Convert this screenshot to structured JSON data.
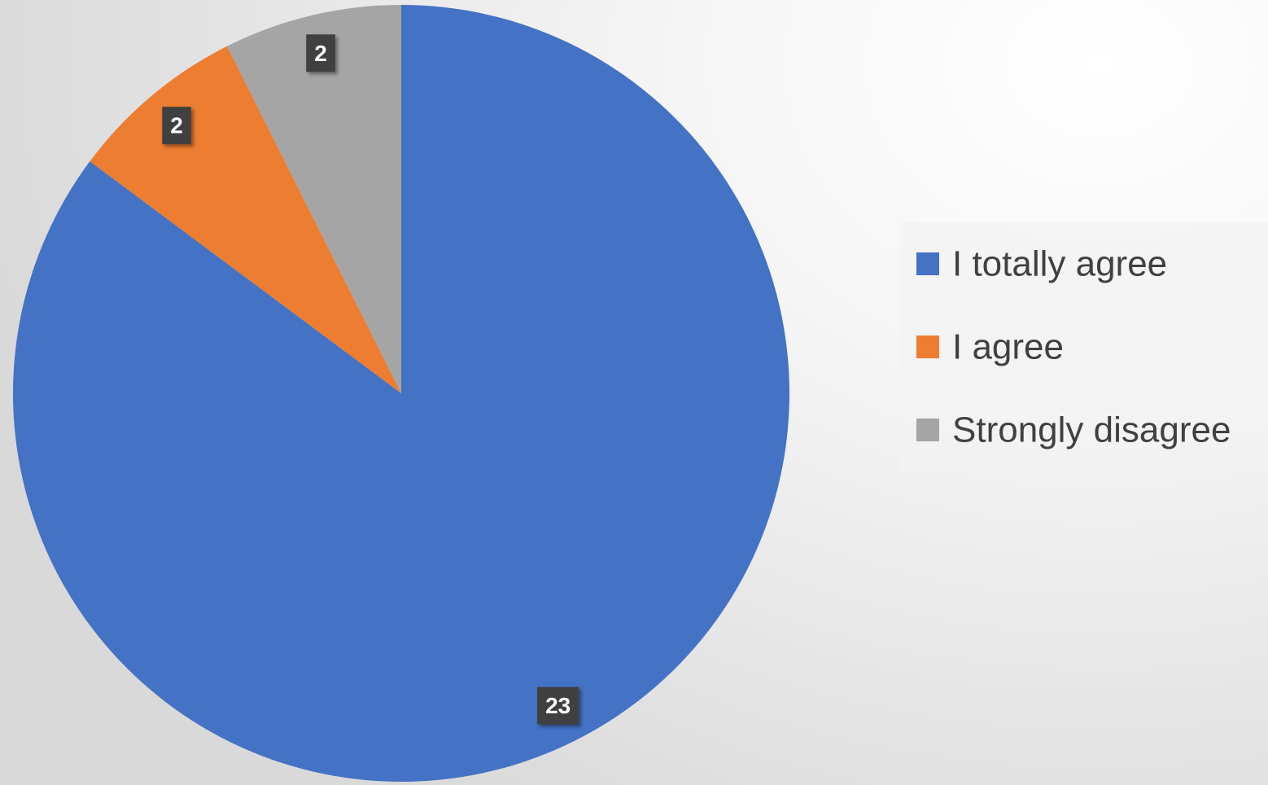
{
  "chart_data": {
    "type": "pie",
    "categories": [
      "I totally agree",
      "I agree",
      "Strongly disagree"
    ],
    "values": [
      23,
      2,
      2
    ],
    "colors": [
      "#4472c4",
      "#ed7d31",
      "#a5a5a5"
    ],
    "legend": "right"
  }
}
